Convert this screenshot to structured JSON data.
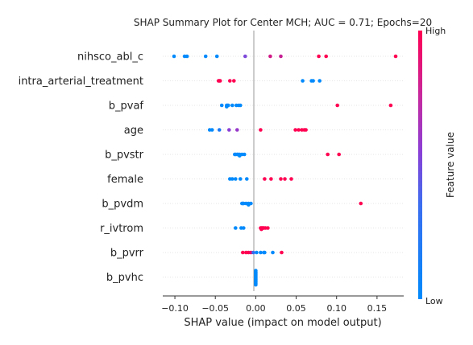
{
  "chart_data": {
    "type": "scatter",
    "title": "SHAP Summary Plot for Center MCH; AUC = 0.71; Epochs=20",
    "xlabel": "SHAP value (impact on model output)",
    "xlim": [
      -0.115,
      0.183
    ],
    "xticks": [
      -0.1,
      -0.05,
      0.0,
      0.05,
      0.1,
      0.15
    ],
    "xtick_labels": [
      "−0.10",
      "−0.05",
      "0.00",
      "0.05",
      "0.10",
      "0.15"
    ],
    "colorbar": {
      "label": "Feature value",
      "high": "High",
      "low": "Low",
      "high_color": "#ff0052",
      "low_color": "#008afb"
    },
    "features": [
      {
        "name": "nihsco_abl_c",
        "points": [
          [
            -0.101,
            0
          ],
          [
            -0.088,
            0
          ],
          [
            -0.085,
            0
          ],
          [
            -0.062,
            0
          ],
          [
            -0.048,
            0
          ],
          [
            -0.013,
            0.45
          ],
          [
            0.018,
            0.8
          ],
          [
            0.031,
            0.75
          ],
          [
            0.078,
            1
          ],
          [
            0.087,
            1
          ],
          [
            0.173,
            1
          ]
        ]
      },
      {
        "name": "intra_arterial_treatment",
        "points": [
          [
            -0.046,
            1
          ],
          [
            -0.045,
            1
          ],
          [
            -0.044,
            1
          ],
          [
            -0.032,
            1
          ],
          [
            -0.027,
            1
          ],
          [
            0.058,
            0
          ],
          [
            0.069,
            0
          ],
          [
            0.071,
            0
          ],
          [
            0.079,
            0
          ]
        ]
      },
      {
        "name": "b_pvaf",
        "points": [
          [
            -0.042,
            0
          ],
          [
            -0.036,
            0
          ],
          [
            -0.034,
            0
          ],
          [
            -0.029,
            0
          ],
          [
            -0.024,
            0
          ],
          [
            -0.021,
            0
          ],
          [
            -0.019,
            0
          ],
          [
            -0.035,
            0
          ],
          [
            -0.036,
            0
          ],
          [
            0.101,
            1
          ],
          [
            0.167,
            1
          ]
        ]
      },
      {
        "name": "age",
        "points": [
          [
            -0.057,
            0
          ],
          [
            -0.054,
            0
          ],
          [
            -0.045,
            0.1
          ],
          [
            -0.033,
            0.5
          ],
          [
            -0.023,
            0.55
          ],
          [
            0.006,
            1
          ],
          [
            0.049,
            1
          ],
          [
            0.053,
            1
          ],
          [
            0.057,
            1
          ],
          [
            0.06,
            1
          ],
          [
            0.062,
            1
          ]
        ]
      },
      {
        "name": "b_pvstr",
        "points": [
          [
            -0.025,
            0
          ],
          [
            -0.023,
            0
          ],
          [
            -0.02,
            0
          ],
          [
            -0.017,
            0
          ],
          [
            -0.014,
            0
          ],
          [
            -0.022,
            0
          ],
          [
            -0.02,
            0
          ],
          [
            -0.026,
            0
          ],
          [
            0.089,
            1
          ],
          [
            0.103,
            1
          ]
        ]
      },
      {
        "name": "female",
        "points": [
          [
            -0.032,
            0
          ],
          [
            -0.029,
            0
          ],
          [
            -0.025,
            0
          ],
          [
            -0.019,
            0
          ],
          [
            -0.011,
            0
          ],
          [
            0.011,
            1
          ],
          [
            0.019,
            1
          ],
          [
            0.031,
            1
          ],
          [
            0.036,
            1
          ],
          [
            0.044,
            1
          ]
        ]
      },
      {
        "name": "b_pvdm",
        "points": [
          [
            -0.017,
            0
          ],
          [
            -0.015,
            0
          ],
          [
            -0.012,
            0
          ],
          [
            -0.009,
            0
          ],
          [
            -0.006,
            0
          ],
          [
            -0.016,
            0
          ],
          [
            -0.009,
            0
          ],
          [
            0.13,
            1
          ]
        ]
      },
      {
        "name": "r_ivtrom",
        "points": [
          [
            -0.025,
            0
          ],
          [
            -0.018,
            0
          ],
          [
            -0.015,
            0
          ],
          [
            0.006,
            1
          ],
          [
            0.007,
            1
          ],
          [
            0.009,
            1
          ],
          [
            0.012,
            1
          ],
          [
            0.015,
            1
          ],
          [
            0.01,
            1
          ],
          [
            0.008,
            1
          ],
          [
            0.007,
            1
          ]
        ]
      },
      {
        "name": "b_pvrr",
        "points": [
          [
            -0.016,
            1
          ],
          [
            -0.012,
            1
          ],
          [
            -0.009,
            1
          ],
          [
            -0.006,
            0.9
          ],
          [
            -0.003,
            0.2
          ],
          [
            0.001,
            0
          ],
          [
            0.006,
            0
          ],
          [
            0.01,
            0
          ],
          [
            0.011,
            0
          ],
          [
            0.021,
            0
          ],
          [
            0.032,
            1
          ]
        ]
      },
      {
        "name": "b_pvhc",
        "points": [
          [
            0,
            0
          ],
          [
            0,
            0
          ],
          [
            0,
            0
          ],
          [
            0,
            0
          ],
          [
            0,
            0
          ],
          [
            0,
            0
          ],
          [
            0,
            0
          ],
          [
            0,
            0
          ],
          [
            0,
            0
          ],
          [
            0,
            0
          ],
          [
            0,
            0
          ],
          [
            0,
            0
          ]
        ]
      }
    ]
  }
}
